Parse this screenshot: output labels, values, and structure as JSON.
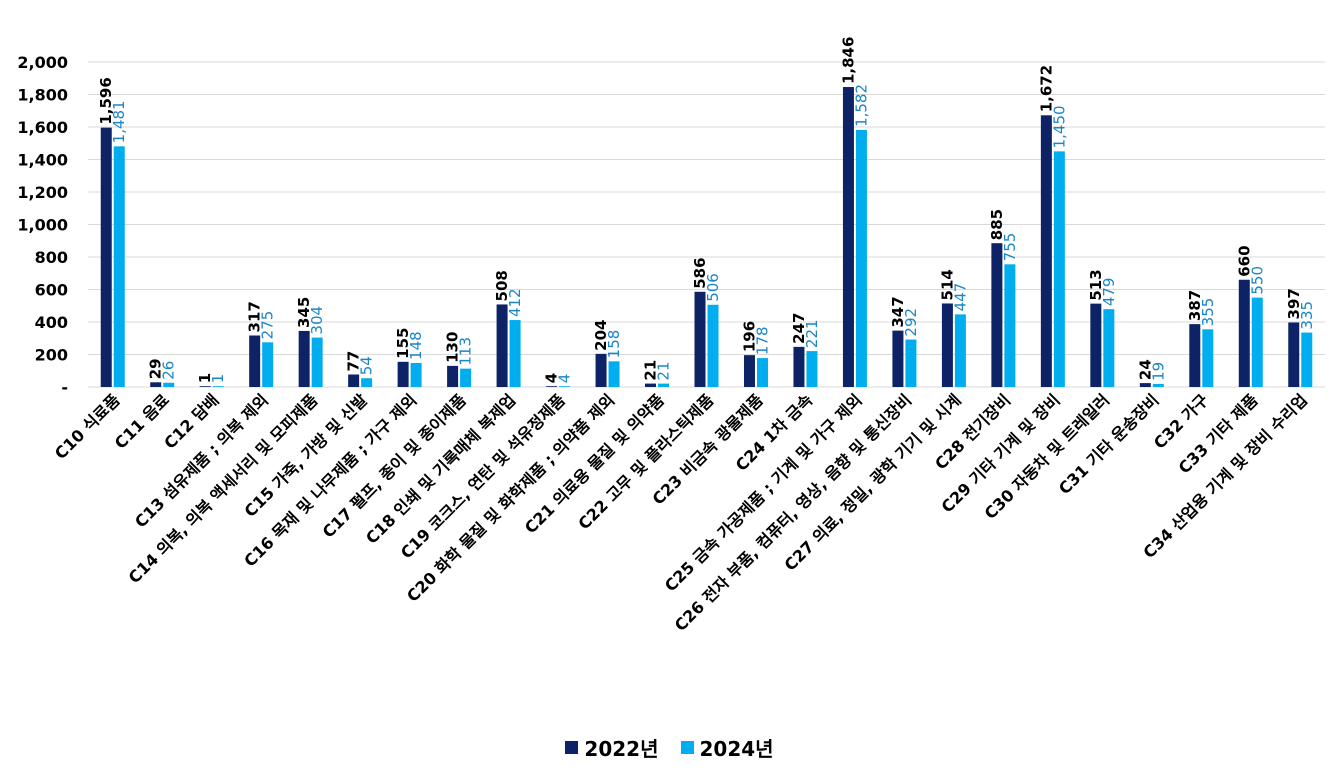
{
  "chart_data": {
    "type": "bar",
    "ylim": [
      0,
      2000
    ],
    "yticks": [
      {
        "value": 0,
        "label": "-"
      },
      {
        "value": 200,
        "label": "200"
      },
      {
        "value": 400,
        "label": "400"
      },
      {
        "value": 600,
        "label": "600"
      },
      {
        "value": 800,
        "label": "800"
      },
      {
        "value": 1000,
        "label": "1,000"
      },
      {
        "value": 1200,
        "label": "1,200"
      },
      {
        "value": 1400,
        "label": "1,400"
      },
      {
        "value": 1600,
        "label": "1,600"
      },
      {
        "value": 1800,
        "label": "1,800"
      },
      {
        "value": 2000,
        "label": "2,000"
      }
    ],
    "grid": true,
    "legend_position": "bottom",
    "categories": [
      "C10 식료품",
      "C11 음료",
      "C12 담배",
      "C13 섬유제품 ; 의복 제외",
      "C14 의복, 의복 액세서리 및 모피제품",
      "C15 가죽, 가방 및 신발",
      "C16 목재 및 나무제품 ; 가구 제외",
      "C17 펄프, 종이 및 종이제품",
      "C18 인쇄 및 기록매체 복제업",
      "C19 코크스, 연탄 및 석유정제품",
      "C20 화학 물질 및 화학제품 ; 의약품 제외",
      "C21 의료용 물질 및 의약품",
      "C22 고무 및 플라스틱제품",
      "C23 비금속 광물제품",
      "C24 1차 금속",
      "C25 금속 가공제품 ; 기계 및 가구 제외",
      "C26 전자 부품, 컴퓨터, 영상, 음향 및 통신장비",
      "C27 의료, 정밀, 광학 기기 및 시계",
      "C28 전기장비",
      "C29 기타 기계 및 장비",
      "C30 자동차 및 트레일러",
      "C31 기타 운송장비",
      "C32 가구",
      "C33 기타 제품",
      "C34 산업용 기계 및 장비 수리업"
    ],
    "series": [
      {
        "name": "2022년",
        "color": "#0d2366",
        "values": [
          1596,
          29,
          1,
          317,
          345,
          77,
          155,
          130,
          508,
          4,
          204,
          21,
          586,
          196,
          247,
          1846,
          347,
          514,
          885,
          1672,
          513,
          24,
          387,
          660,
          397
        ],
        "labels": [
          "1,596",
          "29",
          "1",
          "317",
          "345",
          "77",
          "155",
          "130",
          "508",
          "4",
          "204",
          "21",
          "586",
          "196",
          "247",
          "1,846",
          "347",
          "514",
          "885",
          "1,672",
          "513",
          "24",
          "387",
          "660",
          "397"
        ]
      },
      {
        "name": "2024년",
        "color": "#00aeef",
        "values": [
          1481,
          26,
          1,
          275,
          304,
          54,
          148,
          113,
          412,
          4,
          158,
          21,
          506,
          178,
          221,
          1582,
          292,
          447,
          755,
          1450,
          479,
          19,
          355,
          550,
          335
        ],
        "labels": [
          "1,481",
          "26",
          "1",
          "275",
          "304",
          "54",
          "148",
          "113",
          "412",
          "4",
          "158",
          "21",
          "506",
          "178",
          "221",
          "1,582",
          "292",
          "447",
          "755",
          "1,450",
          "479",
          "19",
          "355",
          "550",
          "335"
        ]
      }
    ]
  }
}
